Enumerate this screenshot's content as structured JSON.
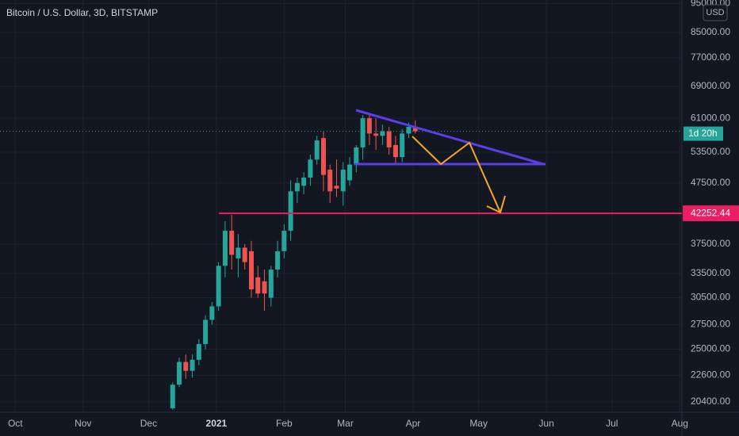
{
  "chart_data": {
    "type": "candlestick",
    "title": "Bitcoin / U.S. Dollar, 3D, BITSTAMP",
    "currency": "USD",
    "countdown": "1d 20h",
    "log_scale": true,
    "grid": true,
    "up_color": "#26a69a",
    "down_color": "#ef5350",
    "xlim": [
      "2020-09-24",
      "2021-08-02"
    ],
    "xticks": [
      {
        "value": "2020-10-01",
        "label": "Oct"
      },
      {
        "value": "2020-11-01",
        "label": "Nov"
      },
      {
        "value": "2020-12-01",
        "label": "Dec"
      },
      {
        "value": "2021-01-01",
        "label": "2021"
      },
      {
        "value": "2021-02-01",
        "label": "Feb"
      },
      {
        "value": "2021-03-01",
        "label": "Mar"
      },
      {
        "value": "2021-04-01",
        "label": "Apr"
      },
      {
        "value": "2021-05-01",
        "label": "May"
      },
      {
        "value": "2021-06-01",
        "label": "Jun"
      },
      {
        "value": "2021-07-01",
        "label": "Jul"
      },
      {
        "value": "2021-08-01",
        "label": "Aug"
      }
    ],
    "ylim": [
      19600,
      96300
    ],
    "yticks": [
      {
        "value": 95000,
        "label": "95000.00"
      },
      {
        "value": 85000,
        "label": "85000.00"
      },
      {
        "value": 77000,
        "label": "77000.00"
      },
      {
        "value": 69000,
        "label": "69000.00"
      },
      {
        "value": 61000,
        "label": "61000.00"
      },
      {
        "value": 53500,
        "label": "53500.00"
      },
      {
        "value": 47500,
        "label": "47500.00"
      },
      {
        "value": 37500,
        "label": "37500.00"
      },
      {
        "value": 33500,
        "label": "33500.00"
      },
      {
        "value": 30500,
        "label": "30500.00"
      },
      {
        "value": 27500,
        "label": "27500.00"
      },
      {
        "value": 25000,
        "label": "25000.00"
      },
      {
        "value": 22600,
        "label": "22600.00"
      },
      {
        "value": 20400,
        "label": "20400.00"
      }
    ],
    "horizontal_line": {
      "value": 42252.44,
      "label": "42252.44",
      "color": "#e91e63"
    },
    "x": [
      "2020-12-12",
      "2020-12-15",
      "2020-12-18",
      "2020-12-21",
      "2020-12-24",
      "2020-12-27",
      "2020-12-30",
      "2021-01-02",
      "2021-01-05",
      "2021-01-08",
      "2021-01-11",
      "2021-01-14",
      "2021-01-17",
      "2021-01-20",
      "2021-01-23",
      "2021-01-26",
      "2021-01-29",
      "2021-02-01",
      "2021-02-04",
      "2021-02-07",
      "2021-02-10",
      "2021-02-13",
      "2021-02-16",
      "2021-02-19",
      "2021-02-22",
      "2021-02-25",
      "2021-02-28",
      "2021-03-03",
      "2021-03-06",
      "2021-03-09",
      "2021-03-12",
      "2021-03-15",
      "2021-03-18",
      "2021-03-21",
      "2021-03-24",
      "2021-03-27",
      "2021-03-30",
      "2021-04-02"
    ],
    "open": [
      19900,
      21800,
      23800,
      23000,
      24000,
      25500,
      28000,
      29500,
      34500,
      39500,
      35500,
      37000,
      36500,
      33000,
      32500,
      30500,
      34000,
      36500,
      39500,
      46000,
      47000,
      48500,
      52000,
      56500,
      50000,
      47000,
      46000,
      48000,
      51000,
      54500,
      61000,
      57500,
      57000,
      58000,
      55000,
      52500,
      57500,
      59000
    ],
    "high": [
      22000,
      24200,
      24500,
      24500,
      26000,
      28500,
      30000,
      35000,
      41000,
      42000,
      39000,
      37500,
      38000,
      34500,
      34000,
      34500,
      38000,
      40500,
      48000,
      48500,
      49500,
      53000,
      57000,
      58000,
      51000,
      52000,
      51500,
      52500,
      55000,
      61800,
      62000,
      61000,
      59500,
      59000,
      57000,
      58500,
      60000,
      60500
    ],
    "low": [
      19800,
      21600,
      22300,
      22400,
      23500,
      25000,
      27500,
      29000,
      33000,
      34000,
      33000,
      34000,
      30500,
      30500,
      29000,
      29500,
      33000,
      35500,
      38000,
      44000,
      45500,
      47000,
      51000,
      46000,
      44000,
      45000,
      43500,
      47000,
      49500,
      52000,
      55000,
      54000,
      55000,
      53000,
      51000,
      51500,
      56500,
      57500
    ],
    "close": [
      21800,
      23800,
      23000,
      24000,
      25500,
      28000,
      29500,
      34500,
      39500,
      36000,
      37000,
      35000,
      31500,
      31000,
      31000,
      34000,
      36500,
      39500,
      46000,
      47500,
      48500,
      52000,
      56000,
      49000,
      46000,
      46500,
      50000,
      51000,
      54500,
      61000,
      57500,
      57000,
      58000,
      54500,
      52500,
      57500,
      59000,
      58000
    ]
  }
}
